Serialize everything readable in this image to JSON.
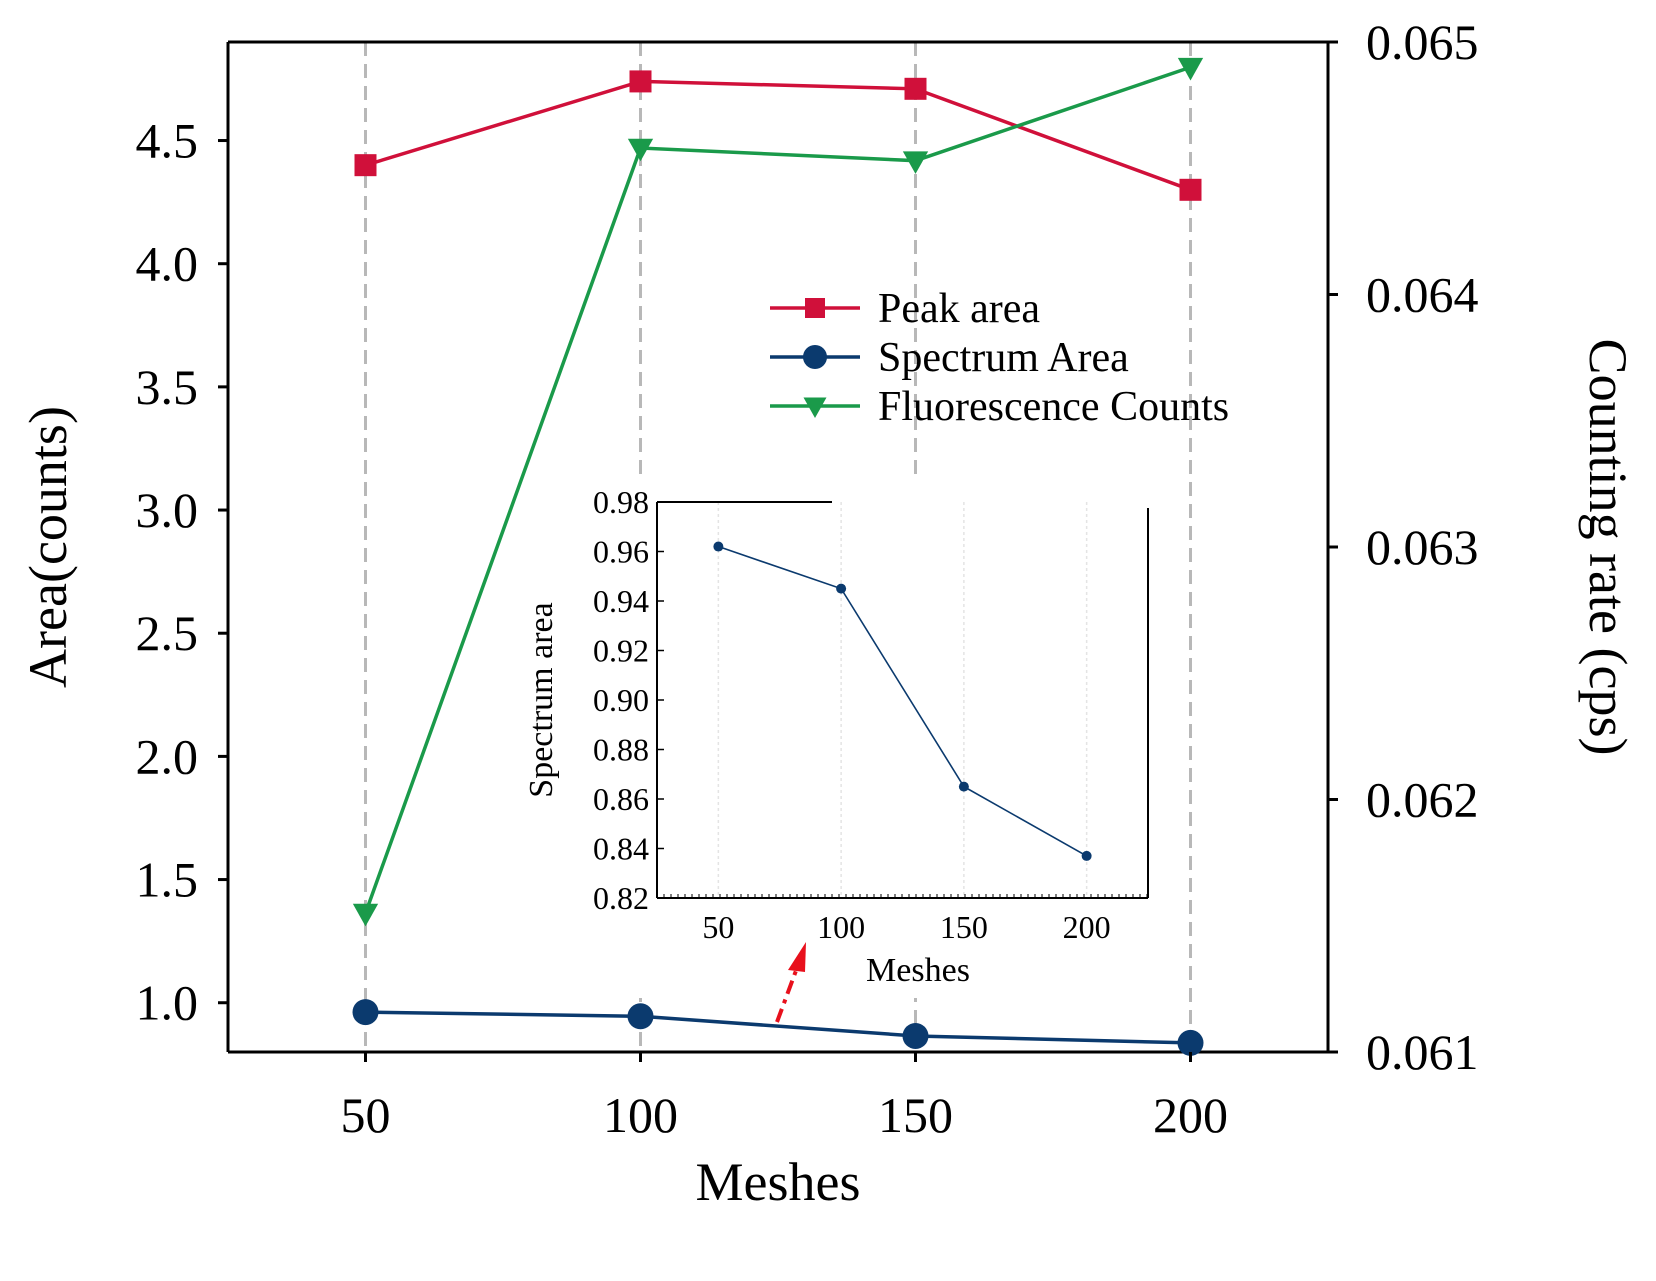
{
  "chart_data": [
    {
      "type": "line",
      "x": [
        50,
        100,
        150,
        200
      ],
      "xlabel": "Meshes",
      "ylabel": "Area(counts)",
      "y2label": "Counting rate (cps)",
      "xlim": [
        25,
        225
      ],
      "ylim": [
        0.8,
        4.9
      ],
      "y2lim": [
        0.061,
        0.065
      ],
      "xticks": [
        "50",
        "100",
        "150",
        "200"
      ],
      "yticks": [
        "1.0",
        "1.5",
        "2.0",
        "2.5",
        "3.0",
        "3.5",
        "4.0",
        "4.5"
      ],
      "y2ticks": [
        "0.061",
        "0.062",
        "0.063",
        "0.064",
        "0.065"
      ],
      "vertical_gridlines": true,
      "legend_position": "upper-right",
      "series": [
        {
          "name": "Peak area",
          "axis": "left",
          "marker": "square",
          "color": "#d0103a",
          "values": [
            4.4,
            4.74,
            4.71,
            4.3
          ]
        },
        {
          "name": "Spectrum Area",
          "axis": "left",
          "marker": "circle",
          "color": "#0b3a6e",
          "values": [
            0.962,
            0.945,
            0.865,
            0.837
          ]
        },
        {
          "name": "Fluorescence Counts",
          "axis": "right",
          "marker": "triangle-down",
          "color": "#1a9a4a",
          "values": [
            0.06155,
            0.06458,
            0.06453,
            0.0649
          ]
        }
      ]
    },
    {
      "type": "line",
      "role": "inset",
      "x": [
        50,
        100,
        150,
        200
      ],
      "xlabel": "Meshes",
      "ylabel": "Spectrum area",
      "xlim": [
        25,
        225
      ],
      "ylim": [
        0.82,
        0.98
      ],
      "xticks": [
        "50",
        "100",
        "150",
        "200"
      ],
      "yticks": [
        "0.82",
        "0.84",
        "0.86",
        "0.88",
        "0.90",
        "0.92",
        "0.94",
        "0.96",
        "0.98"
      ],
      "series": [
        {
          "name": "Spectrum area",
          "marker": "circle",
          "color": "#0b3a6e",
          "values": [
            0.962,
            0.945,
            0.865,
            0.837
          ]
        }
      ]
    }
  ]
}
